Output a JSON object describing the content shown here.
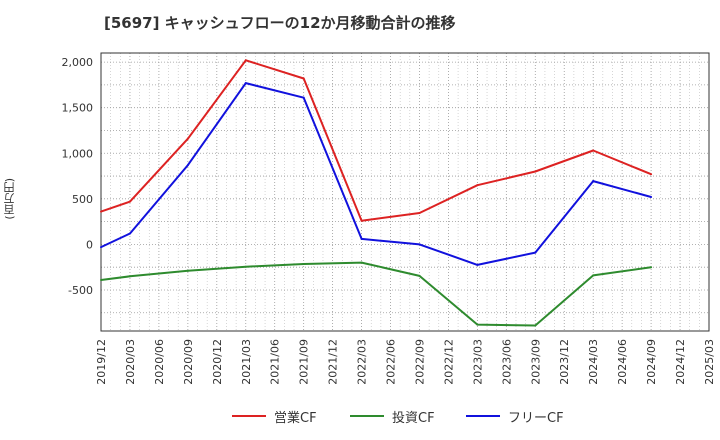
{
  "chart_data": {
    "type": "line",
    "title": "[5697]  キャッシュフローの12か月移動合計の推移",
    "ylabel": "(百万円)",
    "xlabel": "",
    "ylim": [
      -950,
      2100
    ],
    "yticks": [
      2000,
      1500,
      1000,
      500,
      0,
      -500
    ],
    "ytick_labels": [
      "2,000",
      "1,500",
      "1,000",
      "500",
      "0",
      "-500"
    ],
    "x": [
      "2019/12",
      "2020/03",
      "2020/06",
      "2020/09",
      "2020/12",
      "2021/03",
      "2021/06",
      "2021/09",
      "2021/12",
      "2022/03",
      "2022/06",
      "2022/09",
      "2022/12",
      "2023/03",
      "2023/06",
      "2023/09",
      "2023/12",
      "2024/03",
      "2024/06",
      "2024/09",
      "2024/12",
      "2025/03"
    ],
    "series": [
      {
        "name": "営業CF",
        "color": "#dd2222",
        "values": [
          360,
          470,
          null,
          1160,
          null,
          2020,
          null,
          1820,
          null,
          260,
          null,
          345,
          null,
          650,
          null,
          800,
          null,
          1030,
          null,
          770,
          null,
          null
        ]
      },
      {
        "name": "投資CF",
        "color": "#2e8b2e",
        "values": [
          -390,
          -350,
          null,
          -290,
          null,
          -245,
          null,
          -215,
          null,
          -200,
          null,
          -345,
          null,
          -880,
          null,
          -890,
          null,
          -340,
          null,
          -250,
          null,
          null
        ]
      },
      {
        "name": "フリーCF",
        "color": "#1111dd",
        "values": [
          -30,
          120,
          null,
          870,
          null,
          1770,
          null,
          1610,
          null,
          60,
          null,
          0,
          null,
          -225,
          null,
          -90,
          null,
          695,
          null,
          520,
          null,
          null
        ]
      }
    ],
    "grid": true,
    "legend_position": "bottom-center"
  }
}
